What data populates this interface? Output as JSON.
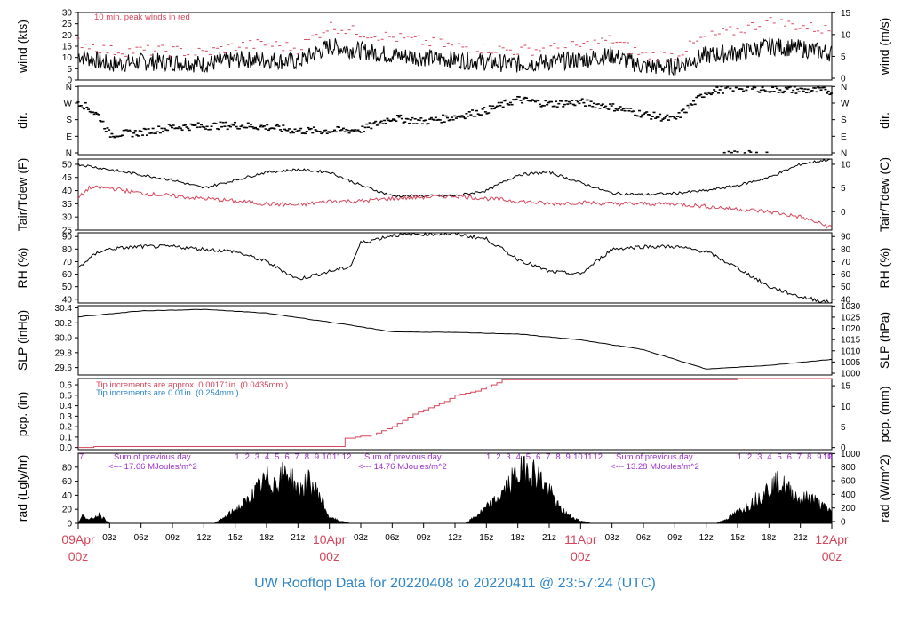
{
  "title": "UW Rooftop Data for 20220408  to  20220411 @ 23:57:24  (UTC)",
  "colors": {
    "red": "#d6455a",
    "blue": "#2e86c8",
    "purple": "#9b30d0",
    "black": "#000000"
  },
  "x_axis": {
    "minor_ticks": [
      "03z",
      "06z",
      "09z",
      "12z",
      "15z",
      "18z",
      "21z",
      "00z",
      "03z",
      "06z",
      "09z",
      "12z",
      "15z",
      "18z",
      "21z",
      "00z",
      "03z",
      "06z",
      "09z",
      "12z",
      "15z",
      "18z",
      "21z"
    ],
    "day_labels": [
      {
        "date": "09Apr",
        "hour": "00z"
      },
      {
        "date": "10Apr",
        "hour": "00z"
      },
      {
        "date": "11Apr",
        "hour": "00z"
      },
      {
        "date": "12Apr",
        "hour": "00z"
      }
    ]
  },
  "chart_data": [
    {
      "type": "line",
      "panel": "wind",
      "ylabel_left": "wind (kts)",
      "ylabel_right": "wind (m/s)",
      "ylim": [
        0,
        30
      ],
      "yticks_left": [
        0,
        5,
        10,
        15,
        20,
        25,
        30
      ],
      "yticks_right": [
        "0",
        "5",
        "10",
        "15"
      ],
      "annotation": "10 min. peak winds in red",
      "series": [
        {
          "name": "wind speed",
          "color": "#000000",
          "x": [
            0,
            3,
            6,
            9,
            12,
            15,
            18,
            21,
            24,
            27,
            30,
            33,
            36,
            39,
            42,
            45,
            48,
            51,
            54,
            57,
            60,
            63,
            66,
            69,
            72
          ],
          "y": [
            11,
            7,
            8,
            8,
            7,
            9,
            9,
            8,
            15,
            13,
            11,
            10,
            9,
            8,
            7,
            8,
            9,
            11,
            6,
            6,
            11,
            12,
            15,
            14,
            12
          ]
        },
        {
          "name": "10 min. peak winds",
          "color": "#d6455a",
          "x": [
            0,
            3,
            6,
            9,
            12,
            15,
            18,
            21,
            24,
            27,
            30,
            33,
            36,
            39,
            42,
            45,
            48,
            51,
            54,
            57,
            60,
            63,
            66,
            69,
            72
          ],
          "y": [
            17,
            13,
            13,
            13,
            12,
            15,
            16,
            14,
            24,
            21,
            19,
            17,
            15,
            14,
            13,
            14,
            15,
            18,
            11,
            11,
            19,
            22,
            26,
            24,
            22
          ]
        }
      ]
    },
    {
      "type": "scatter",
      "panel": "dir",
      "ylabel_left": "dir.",
      "ylabel_right": "dir.",
      "yticks": [
        "N",
        "E",
        "S",
        "W",
        "N"
      ],
      "series": [
        {
          "name": "direction",
          "color": "#000000",
          "x": [
            0,
            1,
            2,
            3,
            6,
            9,
            12,
            15,
            18,
            21,
            24,
            27,
            30,
            33,
            36,
            39,
            42,
            45,
            48,
            51,
            54,
            57,
            60,
            63,
            66,
            69,
            72
          ],
          "y": [
            280,
            240,
            200,
            100,
            110,
            140,
            145,
            150,
            140,
            120,
            120,
            125,
            190,
            170,
            195,
            230,
            290,
            265,
            275,
            250,
            210,
            180,
            330,
            355,
            345,
            340,
            335
          ]
        }
      ]
    },
    {
      "type": "line",
      "panel": "temp",
      "ylabel_left": "Tair/Tdew (F)",
      "ylabel_right": "Tair/Tdew (C)",
      "ylim": [
        25,
        52
      ],
      "yticks_left": [
        25,
        30,
        35,
        40,
        45,
        50
      ],
      "yticks_right": [
        "0",
        "5",
        "10"
      ],
      "series": [
        {
          "name": "Tair",
          "color": "#000000",
          "x": [
            0,
            3,
            6,
            9,
            12,
            15,
            18,
            21,
            24,
            27,
            30,
            33,
            36,
            39,
            42,
            45,
            48,
            51,
            54,
            57,
            60,
            63,
            66,
            69,
            72
          ],
          "y": [
            50,
            48,
            46,
            44,
            41,
            44,
            47,
            48,
            47,
            42,
            38,
            38,
            38,
            40,
            46,
            47,
            43,
            39,
            38.5,
            39,
            40,
            42,
            45,
            50,
            52
          ]
        },
        {
          "name": "Tdew",
          "color": "#d6455a",
          "x": [
            0,
            1,
            3,
            6,
            9,
            12,
            15,
            18,
            21,
            24,
            27,
            30,
            33,
            36,
            39,
            42,
            45,
            48,
            51,
            54,
            57,
            60,
            63,
            66,
            69,
            72
          ],
          "y": [
            37,
            41,
            41,
            39,
            38,
            37,
            36,
            35,
            34.5,
            36,
            36,
            37,
            37.5,
            38,
            37,
            36,
            35,
            35.5,
            35,
            35,
            35,
            34,
            33,
            32,
            30,
            26
          ]
        }
      ]
    },
    {
      "type": "line",
      "panel": "rh",
      "ylabel_left": "RH (%)",
      "ylabel_right": "RH (%)",
      "ylim": [
        37,
        93
      ],
      "yticks": [
        40,
        50,
        60,
        70,
        80,
        90
      ],
      "series": [
        {
          "name": "RH",
          "color": "#000000",
          "x": [
            0,
            1,
            2,
            3,
            6,
            9,
            12,
            15,
            18,
            21,
            24,
            25,
            26,
            27,
            30,
            33,
            36,
            39,
            42,
            45,
            48,
            51,
            54,
            57,
            60,
            63,
            66,
            69,
            72
          ],
          "y": [
            65,
            72,
            78,
            80,
            82,
            82,
            80,
            78,
            70,
            56,
            62,
            64,
            66,
            85,
            91,
            92,
            92,
            88,
            72,
            62,
            60,
            80,
            82,
            82,
            78,
            65,
            50,
            42,
            37
          ]
        }
      ]
    },
    {
      "type": "line",
      "panel": "slp",
      "ylabel_left": "SLP (inHg)",
      "ylabel_right": "SLP (hPa)",
      "ylim": [
        29.5,
        30.43
      ],
      "yticks_left": [
        29.6,
        29.8,
        30.0,
        30.2,
        30.4
      ],
      "yticks_right": [
        "1000",
        "1005",
        "1010",
        "1015",
        "1020",
        "1025",
        "1030"
      ],
      "series": [
        {
          "name": "SLP",
          "color": "#000000",
          "x": [
            0,
            6,
            12,
            18,
            24,
            30,
            36,
            42,
            48,
            54,
            60,
            66,
            72
          ],
          "y": [
            30.28,
            30.36,
            30.38,
            30.33,
            30.21,
            30.08,
            30.07,
            30.05,
            29.97,
            29.84,
            29.58,
            29.63,
            29.71
          ]
        }
      ]
    },
    {
      "type": "line",
      "panel": "pcp",
      "ylabel_left": "pcp. (in)",
      "ylabel_right": "pcp. (mm)",
      "ylim": [
        -0.02,
        0.66
      ],
      "yticks_left": [
        0.0,
        0.1,
        0.2,
        0.3,
        0.4,
        0.5,
        0.6
      ],
      "yticks_right": [
        "0",
        "5",
        "10",
        "15"
      ],
      "annotations": [
        {
          "text": "Tip increments are approx. 0.00171in. (0.0435mm.)",
          "color": "#d6455a"
        },
        {
          "text": "Tip increments are 0.01in. (0.254mm.)",
          "color": "#2e86c8"
        }
      ],
      "series": [
        {
          "name": "precip",
          "color": "#d6455a",
          "x": [
            0,
            1,
            2,
            25,
            25.1,
            28,
            30,
            32,
            33,
            35,
            36,
            38,
            40,
            40.5,
            44,
            50,
            60,
            66,
            72
          ],
          "y": [
            0,
            0,
            0.01,
            0.01,
            0.08,
            0.12,
            0.2,
            0.32,
            0.36,
            0.44,
            0.5,
            0.54,
            0.62,
            0.65,
            0.65,
            0.65,
            0.65,
            0.66,
            0.66
          ]
        }
      ]
    },
    {
      "type": "area",
      "panel": "rad",
      "ylabel_left": "rad (Lgly/hr)",
      "ylabel_right": "rad (W/m^2)",
      "ylim": [
        0,
        100
      ],
      "yticks_left": [
        0,
        20,
        40,
        60,
        80
      ],
      "yticks_right": [
        "0",
        "200",
        "400",
        "600",
        "800",
        "1000"
      ],
      "annotations": [
        {
          "text": "Sum of previous day",
          "color": "#9b30d0"
        },
        {
          "text": "<--- 17.66 MJoules/m^2",
          "color": "#9b30d0"
        },
        {
          "text": "Sum of previous day",
          "color": "#9b30d0"
        },
        {
          "text": "<--- 14.76 MJoules/m^2",
          "color": "#9b30d0"
        },
        {
          "text": "Sum of previous day",
          "color": "#9b30d0"
        },
        {
          "text": "<--- 13.28 MJoules/m^2",
          "color": "#9b30d0"
        }
      ],
      "hour_marks": [
        [
          "7"
        ],
        [
          "1",
          "2",
          "3",
          "4",
          "5",
          "6",
          "7",
          "8",
          "9",
          "10",
          "11",
          "12"
        ],
        [
          "1",
          "2",
          "3",
          "4",
          "5",
          "6",
          "7",
          "8",
          "9",
          "10",
          "11",
          "12"
        ],
        [
          "1",
          "2",
          "3",
          "4",
          "5",
          "6",
          "7",
          "8",
          "9",
          "10",
          "11",
          "12"
        ]
      ],
      "series": [
        {
          "name": "radiation",
          "color": "#000000",
          "x": [
            0,
            0.5,
            1,
            2,
            3,
            13,
            14,
            16,
            18,
            19,
            20,
            21,
            22,
            23,
            24,
            25,
            26,
            37,
            38,
            40,
            42,
            43,
            44,
            45,
            46,
            47,
            48,
            49,
            50,
            61,
            62,
            64,
            66,
            67,
            68,
            69,
            70,
            71,
            72
          ],
          "y": [
            0,
            15,
            5,
            15,
            0,
            0,
            10,
            35,
            75,
            70,
            90,
            55,
            70,
            50,
            10,
            4,
            0,
            0,
            12,
            40,
            85,
            95,
            80,
            55,
            25,
            12,
            4,
            0,
            0,
            0,
            8,
            30,
            60,
            70,
            55,
            40,
            45,
            30,
            20
          ]
        }
      ]
    }
  ]
}
